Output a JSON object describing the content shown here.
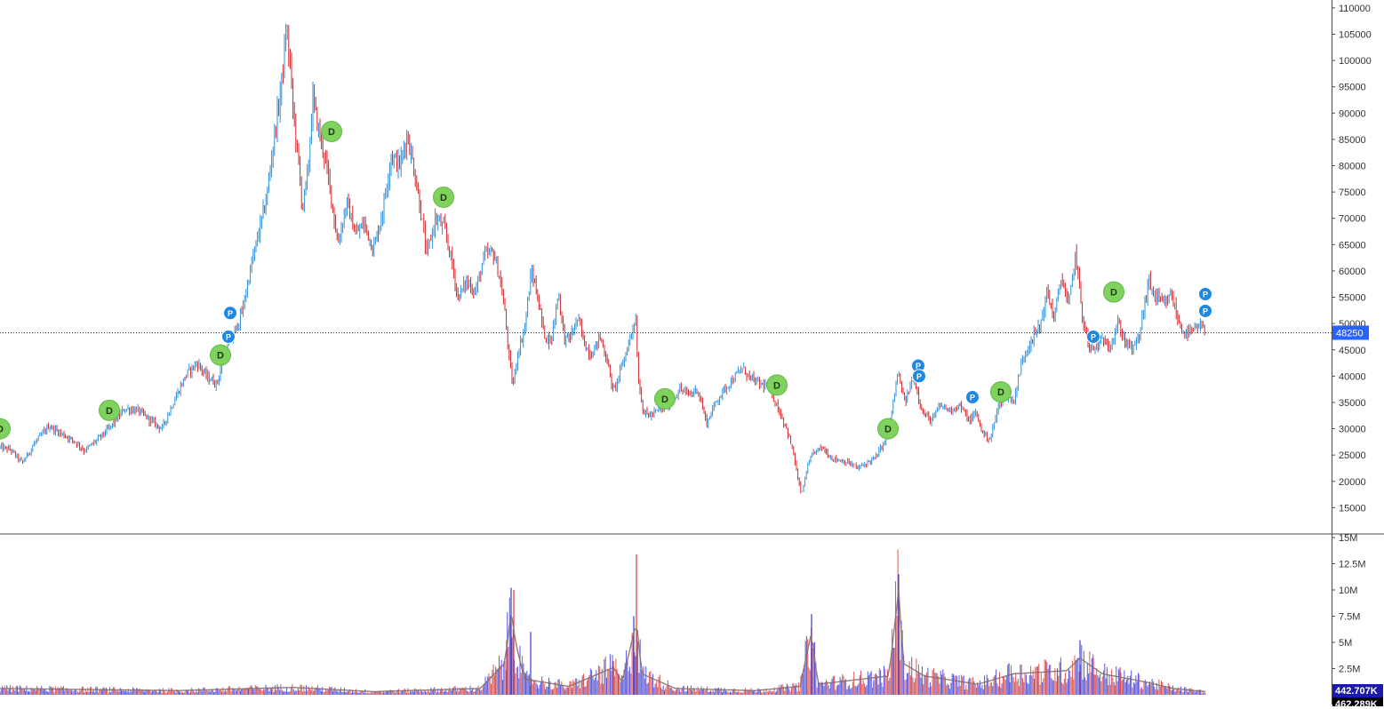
{
  "chart_data": {
    "type": "candlestick",
    "price_axis": {
      "ticks": [
        "110000",
        "105000",
        "100000",
        "95000",
        "90000",
        "85000",
        "80000",
        "75000",
        "70000",
        "65000",
        "60000",
        "55000",
        "50000",
        "45000",
        "40000",
        "35000",
        "30000",
        "25000",
        "20000",
        "15000"
      ],
      "range": [
        10000,
        111500
      ]
    },
    "current_price": {
      "value": 48250,
      "label": "48250",
      "color": "#2962ff"
    },
    "volume_axis": {
      "ticks": [
        "15M",
        "12.5M",
        "10M",
        "7.5M",
        "5M",
        "2.5M"
      ],
      "range": [
        0,
        15000000
      ]
    },
    "volume_labels": [
      {
        "label": "442.707K",
        "bg": "#1a1ab0"
      },
      {
        "label": "462.289K",
        "bg": "#000000"
      }
    ],
    "price_path": [
      [
        0,
        26500
      ],
      [
        12,
        26000
      ],
      [
        25,
        23500
      ],
      [
        40,
        27500
      ],
      [
        55,
        30500
      ],
      [
        70,
        29000
      ],
      [
        85,
        27500
      ],
      [
        95,
        25800
      ],
      [
        110,
        28000
      ],
      [
        125,
        30500
      ],
      [
        140,
        33800
      ],
      [
        155,
        33500
      ],
      [
        170,
        31500
      ],
      [
        182,
        30000
      ],
      [
        195,
        35000
      ],
      [
        210,
        40500
      ],
      [
        222,
        42500
      ],
      [
        232,
        40000
      ],
      [
        244,
        38500
      ],
      [
        252,
        44000
      ],
      [
        262,
        47500
      ],
      [
        272,
        52000
      ],
      [
        282,
        60500
      ],
      [
        292,
        68000
      ],
      [
        300,
        74000
      ],
      [
        308,
        85000
      ],
      [
        314,
        92000
      ],
      [
        318,
        98000
      ],
      [
        322,
        106000
      ],
      [
        326,
        100000
      ],
      [
        330,
        90000
      ],
      [
        335,
        82000
      ],
      [
        340,
        72000
      ],
      [
        346,
        78000
      ],
      [
        352,
        93000
      ],
      [
        358,
        87000
      ],
      [
        365,
        82000
      ],
      [
        372,
        75000
      ],
      [
        380,
        65000
      ],
      [
        390,
        73000
      ],
      [
        400,
        67000
      ],
      [
        410,
        69000
      ],
      [
        420,
        64000
      ],
      [
        430,
        71000
      ],
      [
        440,
        82000
      ],
      [
        450,
        80000
      ],
      [
        458,
        86000
      ],
      [
        465,
        80000
      ],
      [
        472,
        73000
      ],
      [
        480,
        63000
      ],
      [
        490,
        70000
      ],
      [
        500,
        68000
      ],
      [
        508,
        62000
      ],
      [
        515,
        55000
      ],
      [
        525,
        58000
      ],
      [
        535,
        56000
      ],
      [
        545,
        63000
      ],
      [
        555,
        63500
      ],
      [
        563,
        58000
      ],
      [
        568,
        52000
      ],
      [
        573,
        43000
      ],
      [
        577,
        38000
      ],
      [
        582,
        44000
      ],
      [
        590,
        49000
      ],
      [
        598,
        60000
      ],
      [
        605,
        55000
      ],
      [
        612,
        48000
      ],
      [
        620,
        46500
      ],
      [
        628,
        56000
      ],
      [
        635,
        47000
      ],
      [
        642,
        47500
      ],
      [
        650,
        51000
      ],
      [
        658,
        46000
      ],
      [
        665,
        44000
      ],
      [
        675,
        47500
      ],
      [
        683,
        43000
      ],
      [
        690,
        37000
      ],
      [
        700,
        42000
      ],
      [
        710,
        48000
      ],
      [
        715,
        51500
      ],
      [
        718,
        39500
      ],
      [
        724,
        33000
      ],
      [
        732,
        32500
      ],
      [
        740,
        33500
      ],
      [
        752,
        34500
      ],
      [
        765,
        37500
      ],
      [
        775,
        36500
      ],
      [
        785,
        37500
      ],
      [
        795,
        31000
      ],
      [
        805,
        35000
      ],
      [
        815,
        37500
      ],
      [
        825,
        39500
      ],
      [
        835,
        41500
      ],
      [
        845,
        39500
      ],
      [
        855,
        38500
      ],
      [
        865,
        38000
      ],
      [
        875,
        34000
      ],
      [
        885,
        30000
      ],
      [
        893,
        25000
      ],
      [
        898,
        20000
      ],
      [
        902,
        17500
      ],
      [
        908,
        22500
      ],
      [
        915,
        25500
      ],
      [
        925,
        26500
      ],
      [
        935,
        24500
      ],
      [
        945,
        24000
      ],
      [
        955,
        23500
      ],
      [
        965,
        22500
      ],
      [
        975,
        23500
      ],
      [
        985,
        24500
      ],
      [
        995,
        27500
      ],
      [
        1003,
        33000
      ],
      [
        1010,
        40500
      ],
      [
        1018,
        35000
      ],
      [
        1028,
        40000
      ],
      [
        1038,
        33000
      ],
      [
        1048,
        31500
      ],
      [
        1058,
        34500
      ],
      [
        1068,
        33500
      ],
      [
        1080,
        34500
      ],
      [
        1090,
        31500
      ],
      [
        1098,
        33000
      ],
      [
        1106,
        29000
      ],
      [
        1114,
        28000
      ],
      [
        1122,
        33500
      ],
      [
        1130,
        37000
      ],
      [
        1140,
        35000
      ],
      [
        1150,
        43000
      ],
      [
        1160,
        47000
      ],
      [
        1170,
        49500
      ],
      [
        1178,
        56000
      ],
      [
        1186,
        51000
      ],
      [
        1194,
        59000
      ],
      [
        1202,
        53000
      ],
      [
        1210,
        63500
      ],
      [
        1218,
        51000
      ],
      [
        1226,
        45000
      ],
      [
        1234,
        45500
      ],
      [
        1242,
        47000
      ],
      [
        1250,
        46000
      ],
      [
        1258,
        50000
      ],
      [
        1266,
        46500
      ],
      [
        1275,
        45000
      ],
      [
        1282,
        48000
      ],
      [
        1292,
        58000
      ],
      [
        1300,
        55000
      ],
      [
        1310,
        53500
      ],
      [
        1318,
        55500
      ],
      [
        1326,
        50000
      ],
      [
        1334,
        48000
      ],
      [
        1342,
        48500
      ],
      [
        1350,
        49500
      ],
      [
        1356,
        48250
      ]
    ],
    "volume_path": [
      [
        0,
        0.6
      ],
      [
        100,
        0.5
      ],
      [
        200,
        0.4
      ],
      [
        330,
        0.7
      ],
      [
        420,
        0.3
      ],
      [
        540,
        0.6
      ],
      [
        568,
        3.0
      ],
      [
        575,
        8.0
      ],
      [
        580,
        5.0
      ],
      [
        590,
        1.5
      ],
      [
        640,
        0.8
      ],
      [
        690,
        2.6
      ],
      [
        700,
        1.2
      ],
      [
        716,
        7.0
      ],
      [
        722,
        2.0
      ],
      [
        760,
        0.6
      ],
      [
        850,
        0.4
      ],
      [
        900,
        0.8
      ],
      [
        913,
        6.0
      ],
      [
        920,
        1.0
      ],
      [
        1000,
        1.8
      ],
      [
        1011,
        10.0
      ],
      [
        1016,
        3.0
      ],
      [
        1040,
        1.8
      ],
      [
        1100,
        1.0
      ],
      [
        1140,
        2.0
      ],
      [
        1200,
        2.3
      ],
      [
        1215,
        3.5
      ],
      [
        1240,
        2.0
      ],
      [
        1290,
        1.2
      ],
      [
        1320,
        0.6
      ],
      [
        1356,
        0.3
      ]
    ],
    "volume_spikes": [
      [
        575,
        10.2
      ],
      [
        578,
        10.0
      ],
      [
        570,
        5.2
      ],
      [
        597,
        6.0
      ],
      [
        716,
        13.4
      ],
      [
        713,
        7.5
      ],
      [
        690,
        3.2
      ],
      [
        913,
        7.7
      ],
      [
        1011,
        11.5
      ],
      [
        1005,
        4.5
      ],
      [
        1215,
        5.2
      ],
      [
        1230,
        3.5
      ],
      [
        1135,
        3.0
      ],
      [
        1260,
        2.6
      ]
    ],
    "markers": [
      {
        "type": "D",
        "x": 0,
        "price": 30000
      },
      {
        "type": "D",
        "x": 123,
        "price": 33500
      },
      {
        "type": "D",
        "x": 248,
        "price": 44000
      },
      {
        "type": "D",
        "x": 373,
        "price": 86500
      },
      {
        "type": "D",
        "x": 499,
        "price": 74000
      },
      {
        "type": "D",
        "x": 748,
        "price": 35700
      },
      {
        "type": "D",
        "x": 874,
        "price": 38300
      },
      {
        "type": "D",
        "x": 999,
        "price": 30000
      },
      {
        "type": "D",
        "x": 1126,
        "price": 37000
      },
      {
        "type": "D",
        "x": 1253,
        "price": 56000
      },
      {
        "type": "P",
        "x": 259,
        "price": 52000
      },
      {
        "type": "P",
        "x": 257,
        "price": 47500
      },
      {
        "type": "P",
        "x": 1033,
        "price": 42000
      },
      {
        "type": "P",
        "x": 1034,
        "price": 40000
      },
      {
        "type": "P",
        "x": 1094,
        "price": 36000
      },
      {
        "type": "P",
        "x": 1230,
        "price": 47500
      },
      {
        "type": "P",
        "x": 1356,
        "price": 55600
      },
      {
        "type": "P",
        "x": 1356,
        "price": 52400
      }
    ],
    "colors": {
      "up": "#2f8fd6",
      "down": "#d0262c",
      "marker_d": "#7fd25d",
      "marker_p": "#1e88e5",
      "volume_up": "#3b3bd6",
      "volume_down": "#d63b3b",
      "volume_ma": "#8a6d6d"
    }
  }
}
